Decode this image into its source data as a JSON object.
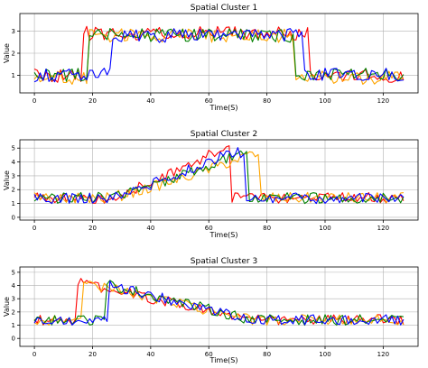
{
  "figure": {
    "background": "#ffffff"
  },
  "chart_data": [
    {
      "type": "line",
      "title": "Spatial Cluster 1",
      "xlabel": "Time(S)",
      "ylabel": "Value",
      "xlim": [
        -5,
        132
      ],
      "ylim": [
        0.2,
        3.8
      ],
      "xticks": [
        0,
        20,
        40,
        60,
        80,
        100,
        120
      ],
      "yticks": [
        1,
        2,
        3
      ],
      "grid": true,
      "series": [
        {
          "color": "#ff0000",
          "base": 1.0,
          "high": 2.9,
          "start": 17,
          "end": 94,
          "noise": 0.32,
          "seed": 11
        },
        {
          "color": "#ffa500",
          "base": 0.9,
          "high": 2.8,
          "start": 19,
          "end": 89,
          "noise": 0.32,
          "seed": 23
        },
        {
          "color": "#008000",
          "base": 1.0,
          "high": 2.8,
          "start": 19,
          "end": 89,
          "noise": 0.32,
          "seed": 37
        },
        {
          "color": "#0000ff",
          "base": 1.0,
          "high": 2.8,
          "start": 27,
          "end": 92,
          "noise": 0.32,
          "seed": 51
        }
      ]
    },
    {
      "type": "line",
      "title": "Spatial Cluster 2",
      "xlabel": "Time(S)",
      "ylabel": "Value",
      "xlim": [
        -5,
        132
      ],
      "ylim": [
        -0.2,
        5.6
      ],
      "xticks": [
        0,
        20,
        40,
        60,
        80,
        100,
        120
      ],
      "yticks": [
        0,
        1,
        2,
        3,
        4,
        5
      ],
      "grid": true,
      "series": [
        {
          "color": "#ff0000",
          "base": 1.4,
          "peak": 4.8,
          "ramp_start": 25,
          "peak_at": 63,
          "drop_at": 68,
          "noise": 0.4,
          "seed": 61
        },
        {
          "color": "#ffa500",
          "base": 1.4,
          "peak": 4.5,
          "ramp_start": 25,
          "peak_at": 74,
          "drop_at": 78,
          "noise": 0.4,
          "seed": 73
        },
        {
          "color": "#008000",
          "base": 1.4,
          "peak": 4.6,
          "ramp_start": 25,
          "peak_at": 70,
          "drop_at": 74,
          "noise": 0.4,
          "seed": 89
        },
        {
          "color": "#0000ff",
          "base": 1.4,
          "peak": 4.7,
          "ramp_start": 25,
          "peak_at": 67,
          "drop_at": 73,
          "noise": 0.4,
          "seed": 97
        }
      ]
    },
    {
      "type": "line",
      "title": "Spatial Cluster 3",
      "xlabel": "Time(S)",
      "ylabel": "Value",
      "xlim": [
        -5,
        132
      ],
      "ylim": [
        -0.6,
        5.4
      ],
      "xticks": [
        0,
        20,
        40,
        60,
        80,
        100,
        120
      ],
      "yticks": [
        0,
        1,
        2,
        3,
        4,
        5
      ],
      "grid": true,
      "series": [
        {
          "color": "#ff0000",
          "base": 1.4,
          "peak": 4.2,
          "jump_at": 15,
          "decay_end": 75,
          "noise": 0.4,
          "seed": 103
        },
        {
          "color": "#ffa500",
          "base": 1.4,
          "peak": 4.2,
          "jump_at": 17,
          "decay_end": 75,
          "noise": 0.4,
          "seed": 109
        },
        {
          "color": "#008000",
          "base": 1.4,
          "peak": 4.1,
          "jump_at": 25,
          "decay_end": 75,
          "noise": 0.4,
          "seed": 127
        },
        {
          "color": "#0000ff",
          "base": 1.4,
          "peak": 4.0,
          "jump_at": 26,
          "decay_end": 75,
          "noise": 0.4,
          "seed": 131
        }
      ]
    }
  ]
}
